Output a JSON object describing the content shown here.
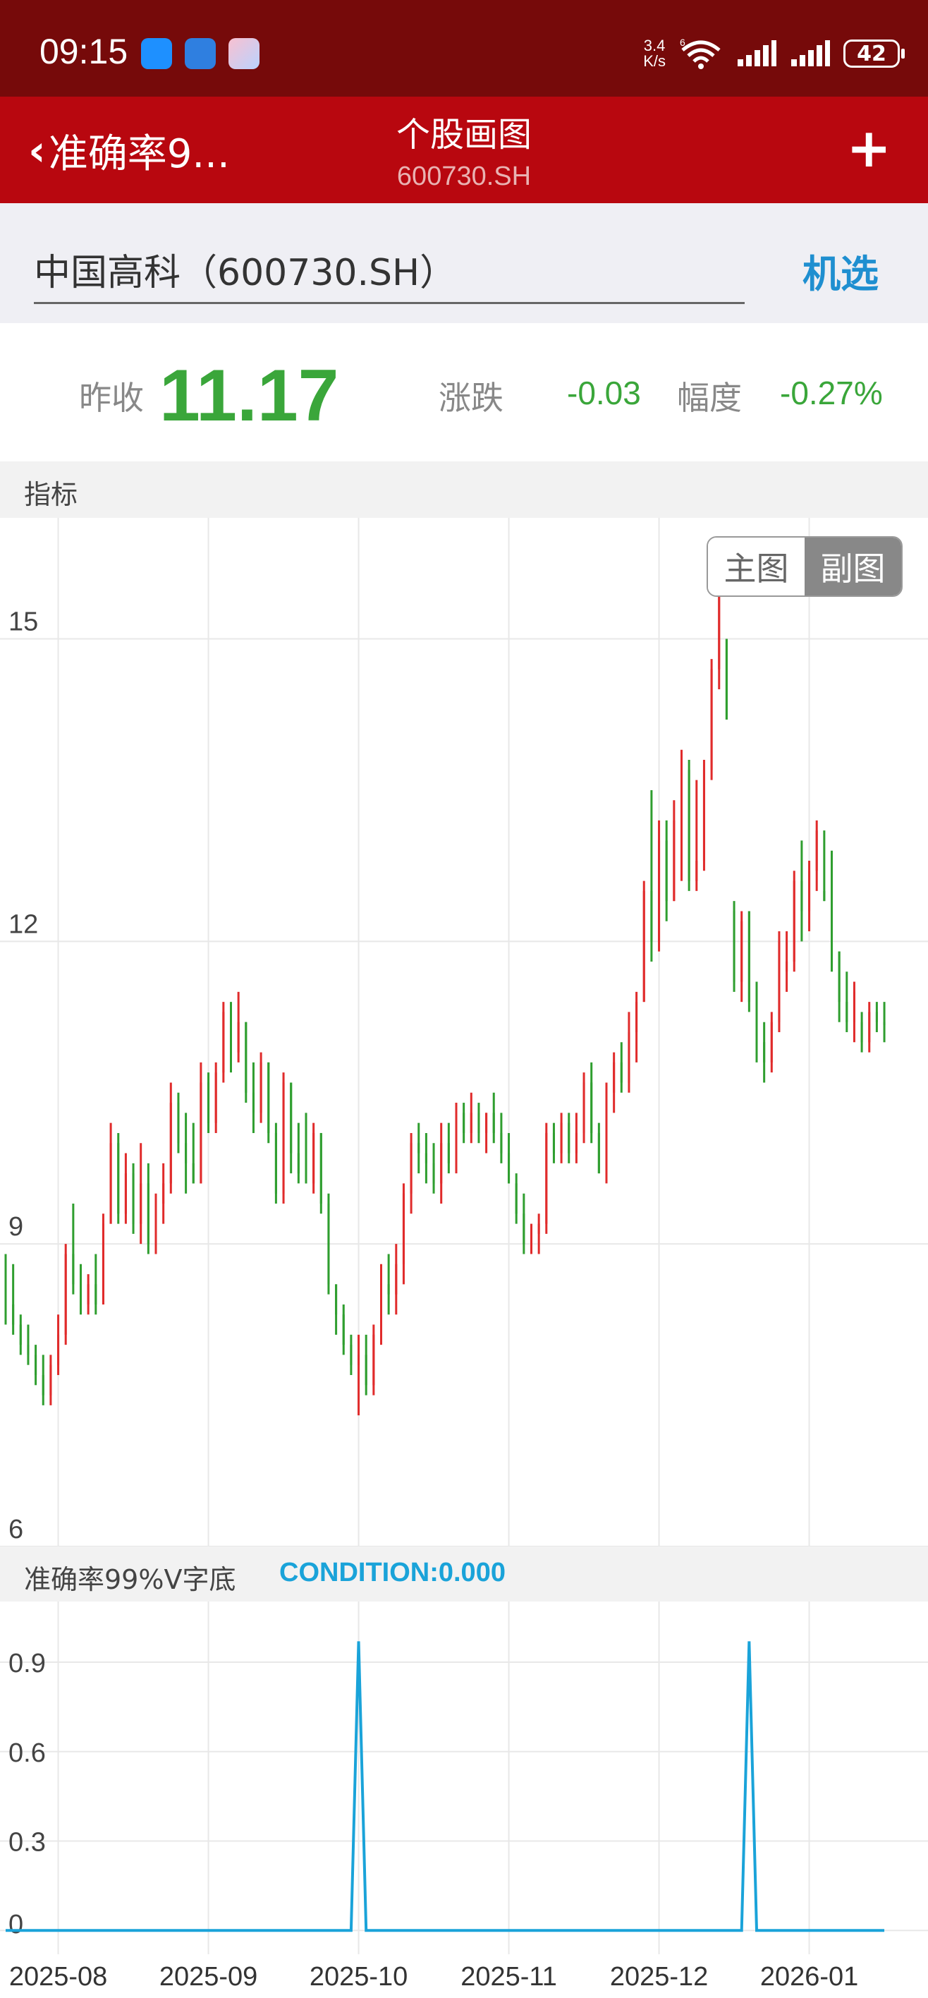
{
  "status_bar": {
    "time": "09:15",
    "net_speed_top": "3.4",
    "net_speed_bottom": "K/s",
    "wifi_tag": "6",
    "battery": "42"
  },
  "nav": {
    "back_label": "准确率9...",
    "title": "个股画图",
    "subtitle": "600730.SH",
    "add_label": "+"
  },
  "search": {
    "stock_name": "中国高科（600730.SH）",
    "select_label": "机选"
  },
  "quote": {
    "prev_close_label": "昨收",
    "price": "11.17",
    "change_label": "涨跌",
    "change": "-0.03",
    "pct_label": "幅度",
    "pct": "-0.27%"
  },
  "indicator_section": {
    "label": "指标"
  },
  "toggle": {
    "main_label": "主图",
    "sub_label": "副图",
    "selected": "副图"
  },
  "condition": {
    "name": "准确率99%V字底",
    "value": "CONDITION:0.000"
  },
  "colors": {
    "up": "#e02b2b",
    "down": "#2f9e2f",
    "line": "#1aa3d9",
    "grid": "#e8e8e8",
    "accent": "#1f8fd0",
    "header": "#b8070f"
  },
  "chart_data": [
    {
      "type": "candlestick",
      "title": "",
      "ylim": [
        6,
        16.2
      ],
      "yticks": [
        15,
        12,
        9,
        6
      ],
      "ohlc": [
        [
          8.5,
          8.9,
          8.2,
          8.4
        ],
        [
          8.4,
          8.8,
          8.1,
          8.2
        ],
        [
          8.2,
          8.3,
          7.9,
          8.0
        ],
        [
          8.0,
          8.2,
          7.8,
          7.9
        ],
        [
          7.9,
          8.0,
          7.6,
          7.7
        ],
        [
          7.7,
          7.9,
          7.4,
          7.5
        ],
        [
          7.5,
          7.9,
          7.4,
          7.8
        ],
        [
          7.8,
          8.3,
          7.7,
          8.1
        ],
        [
          8.1,
          9.0,
          8.0,
          8.9
        ],
        [
          8.9,
          9.4,
          8.5,
          8.6
        ],
        [
          8.6,
          8.8,
          8.3,
          8.4
        ],
        [
          8.4,
          8.7,
          8.3,
          8.6
        ],
        [
          8.6,
          8.9,
          8.3,
          8.4
        ],
        [
          8.4,
          9.3,
          8.4,
          9.2
        ],
        [
          9.2,
          10.2,
          9.2,
          10.0
        ],
        [
          10.0,
          10.1,
          9.2,
          9.3
        ],
        [
          9.3,
          9.9,
          9.2,
          9.7
        ],
        [
          9.7,
          9.8,
          9.1,
          9.2
        ],
        [
          9.2,
          10.0,
          9.0,
          9.6
        ],
        [
          9.6,
          9.8,
          8.9,
          9.0
        ],
        [
          9.0,
          9.5,
          8.9,
          9.4
        ],
        [
          9.4,
          9.8,
          9.2,
          9.6
        ],
        [
          9.6,
          10.6,
          9.5,
          10.4
        ],
        [
          10.4,
          10.5,
          9.9,
          10.0
        ],
        [
          10.0,
          10.3,
          9.5,
          9.8
        ],
        [
          9.8,
          10.2,
          9.6,
          9.6
        ],
        [
          9.6,
          10.8,
          9.6,
          10.6
        ],
        [
          10.6,
          10.7,
          10.1,
          10.2
        ],
        [
          10.2,
          10.8,
          10.1,
          10.7
        ],
        [
          10.7,
          11.4,
          10.6,
          11.3
        ],
        [
          11.3,
          11.4,
          10.7,
          10.9
        ],
        [
          10.9,
          11.5,
          10.8,
          11.2
        ],
        [
          11.2,
          11.2,
          10.4,
          10.5
        ],
        [
          10.5,
          10.8,
          10.1,
          10.3
        ],
        [
          10.3,
          10.9,
          10.2,
          10.8
        ],
        [
          10.8,
          10.8,
          10.0,
          10.1
        ],
        [
          10.1,
          10.2,
          9.4,
          9.5
        ],
        [
          9.5,
          10.7,
          9.4,
          10.6
        ],
        [
          10.6,
          10.6,
          9.7,
          9.9
        ],
        [
          9.9,
          10.2,
          9.6,
          9.7
        ],
        [
          9.7,
          10.3,
          9.6,
          9.6
        ],
        [
          9.6,
          10.2,
          9.5,
          10.1
        ],
        [
          10.1,
          10.1,
          9.3,
          9.4
        ],
        [
          9.4,
          9.5,
          8.5,
          8.6
        ],
        [
          8.6,
          8.6,
          8.1,
          8.3
        ],
        [
          8.3,
          8.4,
          7.9,
          8.0
        ],
        [
          8.0,
          8.1,
          7.7,
          7.8
        ],
        [
          7.8,
          8.1,
          7.3,
          7.9
        ],
        [
          7.9,
          8.1,
          7.5,
          7.6
        ],
        [
          7.6,
          8.2,
          7.5,
          8.1
        ],
        [
          8.1,
          8.8,
          8.0,
          8.6
        ],
        [
          8.6,
          8.9,
          8.3,
          8.5
        ],
        [
          8.5,
          9.0,
          8.3,
          8.8
        ],
        [
          8.8,
          9.6,
          8.6,
          9.5
        ],
        [
          9.5,
          10.1,
          9.3,
          10.0
        ],
        [
          10.0,
          10.2,
          9.7,
          9.9
        ],
        [
          9.9,
          10.1,
          9.6,
          9.8
        ],
        [
          9.8,
          10.0,
          9.5,
          9.6
        ],
        [
          9.6,
          10.2,
          9.4,
          10.0
        ],
        [
          10.0,
          10.2,
          9.7,
          9.8
        ],
        [
          9.8,
          10.4,
          9.7,
          10.3
        ],
        [
          10.3,
          10.4,
          10.0,
          10.1
        ],
        [
          10.1,
          10.5,
          10.0,
          10.3
        ],
        [
          10.3,
          10.4,
          10.0,
          10.1
        ],
        [
          10.1,
          10.3,
          9.9,
          10.3
        ],
        [
          10.3,
          10.5,
          10.0,
          10.1
        ],
        [
          10.1,
          10.3,
          9.8,
          9.9
        ],
        [
          9.9,
          10.1,
          9.6,
          9.6
        ],
        [
          9.6,
          9.7,
          9.2,
          9.3
        ],
        [
          9.3,
          9.5,
          8.9,
          9.0
        ],
        [
          9.0,
          9.2,
          8.9,
          9.1
        ],
        [
          9.1,
          9.3,
          8.9,
          9.2
        ],
        [
          9.2,
          10.2,
          9.1,
          10.1
        ],
        [
          10.1,
          10.2,
          9.8,
          9.9
        ],
        [
          9.9,
          10.3,
          9.8,
          10.2
        ],
        [
          10.2,
          10.3,
          9.8,
          9.9
        ],
        [
          9.9,
          10.3,
          9.8,
          10.1
        ],
        [
          10.1,
          10.7,
          10.0,
          10.6
        ],
        [
          10.6,
          10.8,
          10.0,
          10.1
        ],
        [
          10.1,
          10.2,
          9.7,
          9.7
        ],
        [
          9.7,
          10.6,
          9.6,
          10.5
        ],
        [
          10.5,
          10.9,
          10.3,
          10.8
        ],
        [
          10.8,
          11.0,
          10.5,
          10.6
        ],
        [
          10.6,
          11.3,
          10.5,
          11.1
        ],
        [
          11.1,
          11.5,
          10.8,
          11.4
        ],
        [
          11.4,
          12.6,
          11.4,
          12.5
        ],
        [
          12.5,
          13.5,
          11.8,
          12.0
        ],
        [
          12.0,
          13.2,
          11.9,
          13.0
        ],
        [
          13.0,
          13.2,
          12.2,
          12.4
        ],
        [
          12.4,
          13.4,
          12.4,
          13.2
        ],
        [
          13.2,
          13.9,
          12.6,
          13.7
        ],
        [
          13.7,
          13.8,
          12.5,
          12.6
        ],
        [
          12.6,
          13.6,
          12.5,
          12.8
        ],
        [
          12.8,
          13.8,
          12.7,
          13.7
        ],
        [
          13.7,
          14.8,
          13.6,
          14.7
        ],
        [
          14.7,
          16.0,
          14.5,
          15.9
        ],
        [
          15.0,
          15.0,
          14.2,
          14.2
        ],
        [
          12.3,
          12.4,
          11.5,
          11.6
        ],
        [
          11.6,
          12.3,
          11.4,
          12.2
        ],
        [
          12.3,
          12.3,
          11.3,
          11.4
        ],
        [
          11.3,
          11.6,
          10.8,
          11.0
        ],
        [
          11.0,
          11.2,
          10.6,
          10.8
        ],
        [
          10.8,
          11.3,
          10.7,
          11.2
        ],
        [
          11.2,
          12.1,
          11.1,
          12.0
        ],
        [
          11.7,
          12.1,
          11.5,
          11.8
        ],
        [
          11.8,
          12.7,
          11.7,
          12.6
        ],
        [
          12.6,
          13.0,
          12.0,
          12.3
        ],
        [
          12.3,
          12.8,
          12.1,
          12.7
        ],
        [
          12.7,
          13.2,
          12.5,
          13.1
        ],
        [
          12.5,
          13.1,
          12.4,
          12.4
        ],
        [
          12.8,
          12.9,
          11.7,
          11.8
        ],
        [
          11.9,
          11.9,
          11.2,
          11.4
        ],
        [
          11.4,
          11.7,
          11.1,
          11.2
        ],
        [
          11.2,
          11.6,
          11.0,
          11.5
        ],
        [
          11.2,
          11.3,
          10.9,
          11.0
        ],
        [
          11.0,
          11.4,
          10.9,
          11.3
        ],
        [
          11.3,
          11.4,
          11.1,
          11.2
        ],
        [
          11.2,
          11.4,
          11.0,
          11.17
        ]
      ]
    },
    {
      "type": "line",
      "series": [
        {
          "name": "CONDITION",
          "points": [
            [
              0,
              0
            ],
            [
              46,
              0
            ],
            [
              47,
              0.97
            ],
            [
              48,
              0
            ],
            [
              98,
              0
            ],
            [
              99,
              0.97
            ],
            [
              100,
              0
            ],
            [
              117,
              0
            ]
          ]
        }
      ],
      "ylim": [
        -0.08,
        1.08
      ],
      "yticks": [
        0.9,
        0.6,
        0.3,
        0
      ],
      "x_tick_labels": [
        "2025-08",
        "2025-09",
        "2025-10",
        "2025-11",
        "2025-12",
        "2026-01"
      ],
      "x_tick_bars": [
        7,
        27,
        47,
        67,
        87,
        107
      ],
      "n_bars": 118
    }
  ]
}
